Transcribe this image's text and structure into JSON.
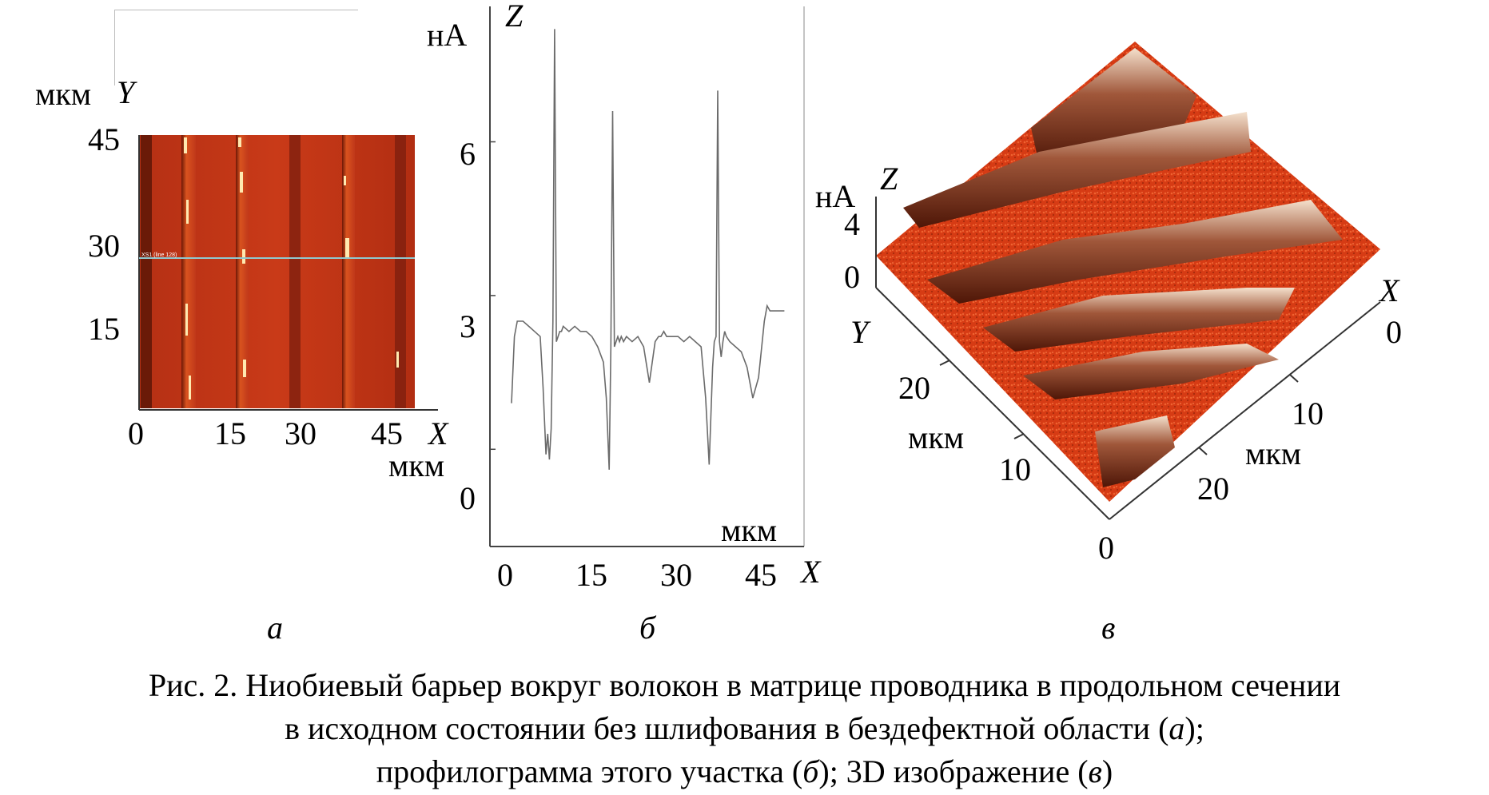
{
  "panel_a": {
    "y_unit": "мкм",
    "y_axis": "Y",
    "y_ticks": [
      "45",
      "30",
      "15"
    ],
    "x_ticks": [
      "0",
      "15",
      "30",
      "45"
    ],
    "x_axis": "X",
    "x_unit": "мкм",
    "scan_label": "XS1 (line 128)",
    "label": "а",
    "colors": {
      "base": "#c8371a",
      "dark": "#7a1a08",
      "bright": "#ffe9b0"
    }
  },
  "panel_b": {
    "y_unit": "нА",
    "y_axis": "Z",
    "y_ticks": [
      "6",
      "3",
      "0"
    ],
    "x_ticks": [
      "0",
      "15",
      "30",
      "45"
    ],
    "x_axis": "X",
    "x_unit": "мкм",
    "label": "б",
    "chart_data": {
      "type": "line",
      "xlim": [
        0,
        48
      ],
      "ylim": [
        -0.9,
        8.3
      ],
      "x": [
        0,
        0.5,
        1,
        2,
        3,
        4,
        5,
        5.5,
        6,
        6.3,
        6.6,
        6.9,
        7.2,
        7.5,
        7.8,
        8.1,
        8.4,
        8.7,
        9,
        10,
        11,
        12,
        13,
        14,
        15,
        16,
        16.5,
        17,
        17.3,
        17.6,
        17.9,
        18.2,
        18.5,
        18.8,
        19.1,
        19.5,
        20,
        21,
        22,
        23,
        24,
        25,
        25.6,
        26,
        26.5,
        27,
        28,
        29,
        30,
        31,
        32,
        33,
        33.8,
        34.4,
        35,
        35.3,
        35.6,
        35.9,
        36.2,
        36.5,
        36.8,
        37.1,
        37.4,
        38,
        39,
        40,
        41,
        42,
        43,
        44,
        44.5,
        45,
        45.3,
        45.6,
        46,
        46.5,
        47,
        47.5
      ],
      "y": [
        0.9,
        2.2,
        2.5,
        2.5,
        2.4,
        2.3,
        2.2,
        1.2,
        -0.1,
        0.3,
        -0.2,
        0.4,
        2.5,
        8.2,
        2.1,
        2.2,
        2.3,
        2.3,
        2.4,
        2.3,
        2.4,
        2.3,
        2.3,
        2.2,
        2.0,
        1.7,
        1.0,
        -0.4,
        2.0,
        6.6,
        2.0,
        2.1,
        2.2,
        2.1,
        2.2,
        2.1,
        2.2,
        2.1,
        2.2,
        2.0,
        1.3,
        2.1,
        2.2,
        2.2,
        2.3,
        2.2,
        2.2,
        2.2,
        2.1,
        2.2,
        2.1,
        2.0,
        1.0,
        -0.3,
        1.6,
        2.1,
        2.2,
        7.0,
        2.1,
        1.8,
        2.1,
        2.3,
        2.2,
        2.1,
        2.0,
        1.9,
        1.6,
        1.0,
        1.4,
        2.5,
        2.8,
        2.7,
        2.7,
        2.7,
        2.7,
        2.7,
        2.7,
        2.7
      ],
      "ylim_note": ""
    }
  },
  "panel_c": {
    "z_unit": "нА",
    "z_axis": "Z",
    "z_ticks": [
      "4",
      "0"
    ],
    "x_axis": "X",
    "x_ticks": [
      "0",
      "10",
      "20"
    ],
    "x_unit": "мкм",
    "y_axis": "Y",
    "y_ticks": [
      "20",
      "10",
      "0"
    ],
    "y_unit": "мкм",
    "label": "в",
    "colors": {
      "surface": "#d63b14",
      "ridge_light": "#f4e0cc",
      "ridge_dark": "#5a1d0c"
    }
  },
  "caption": {
    "line1": "Рис. 2. Ниобиевый барьер вокруг волокон в матрице проводника в продольном сечении",
    "line2_pre": "в исходном состоянии без шлифования в бездефектной области (",
    "line2_ref": "а",
    "line2_post": ");",
    "line3_pre": "профилограмма этого участка (",
    "line3_ref1": "б",
    "line3_mid": "); 3D изображение (",
    "line3_ref2": "в",
    "line3_post": ")"
  }
}
